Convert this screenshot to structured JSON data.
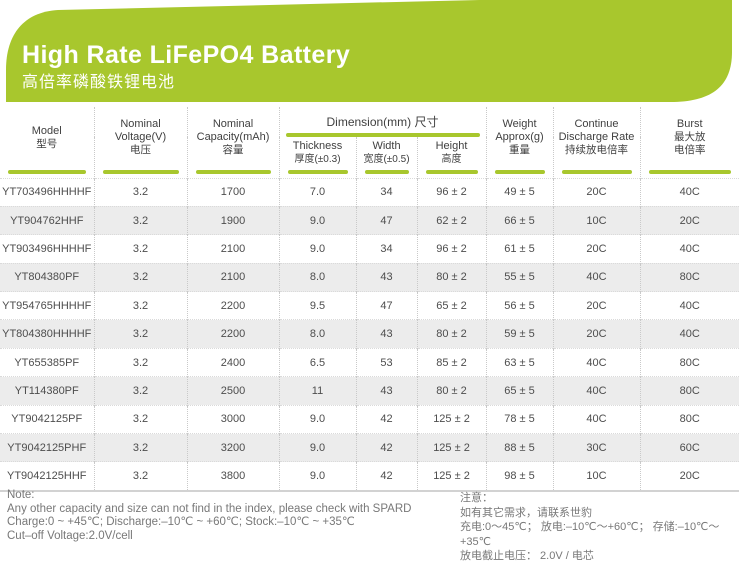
{
  "theme": {
    "accent_green": "#a8c72d",
    "stripe_gray": "#ececec",
    "header_text": "#3f3f3f",
    "body_text": "#4d4d4d",
    "note_text": "#787878"
  },
  "banner": {
    "title": "High Rate LiFePO4 Battery",
    "subtitle": "高倍率磷酸铁锂电池"
  },
  "table": {
    "dimension_group_label": "Dimension(mm) 尺寸",
    "headers": {
      "model": [
        "Model",
        "型号"
      ],
      "voltage": [
        "Nominal",
        "Voltage(V)",
        "电压"
      ],
      "capacity": [
        "Nominal",
        "Capacity(mAh)",
        "容量"
      ],
      "thickness": [
        "Thickness",
        "厚度(±0.3)"
      ],
      "width": [
        "Width",
        "宽度(±0.5)"
      ],
      "height": [
        "Height",
        "高度"
      ],
      "weight": [
        "Weight",
        "Approx(g)",
        "重量"
      ],
      "discharge_rate": [
        "Continue",
        "Discharge Rate",
        "持续放电倍率"
      ],
      "burst": [
        "Burst",
        "最大放",
        "电倍率"
      ]
    },
    "rows": [
      {
        "model": "YT703496HHHHF",
        "voltage": "3.2",
        "capacity": "1700",
        "thickness": "7.0",
        "width": "34",
        "height": "96 ± 2",
        "weight": "49 ± 5",
        "discharge_rate": "20C",
        "burst": "40C"
      },
      {
        "model": "YT904762HHF",
        "voltage": "3.2",
        "capacity": "1900",
        "thickness": "9.0",
        "width": "47",
        "height": "62 ± 2",
        "weight": "66 ± 5",
        "discharge_rate": "10C",
        "burst": "20C"
      },
      {
        "model": "YT903496HHHHF",
        "voltage": "3.2",
        "capacity": "2100",
        "thickness": "9.0",
        "width": "34",
        "height": "96 ± 2",
        "weight": "61 ± 5",
        "discharge_rate": "20C",
        "burst": "40C"
      },
      {
        "model": "YT804380PF",
        "voltage": "3.2",
        "capacity": "2100",
        "thickness": "8.0",
        "width": "43",
        "height": "80 ± 2",
        "weight": "55 ± 5",
        "discharge_rate": "40C",
        "burst": "80C"
      },
      {
        "model": "YT954765HHHHF",
        "voltage": "3.2",
        "capacity": "2200",
        "thickness": "9.5",
        "width": "47",
        "height": "65 ± 2",
        "weight": "56 ± 5",
        "discharge_rate": "20C",
        "burst": "40C"
      },
      {
        "model": "YT804380HHHHF",
        "voltage": "3.2",
        "capacity": "2200",
        "thickness": "8.0",
        "width": "43",
        "height": "80 ± 2",
        "weight": "59 ± 5",
        "discharge_rate": "20C",
        "burst": "40C"
      },
      {
        "model": "YT655385PF",
        "voltage": "3.2",
        "capacity": "2400",
        "thickness": "6.5",
        "width": "53",
        "height": "85 ± 2",
        "weight": "63 ± 5",
        "discharge_rate": "40C",
        "burst": "80C"
      },
      {
        "model": "YT114380PF",
        "voltage": "3.2",
        "capacity": "2500",
        "thickness": "11",
        "width": "43",
        "height": "80 ± 2",
        "weight": "65 ± 5",
        "discharge_rate": "40C",
        "burst": "80C"
      },
      {
        "model": "YT9042125PF",
        "voltage": "3.2",
        "capacity": "3000",
        "thickness": "9.0",
        "width": "42",
        "height": "125 ± 2",
        "weight": "78 ± 5",
        "discharge_rate": "40C",
        "burst": "80C"
      },
      {
        "model": "YT9042125PHF",
        "voltage": "3.2",
        "capacity": "3200",
        "thickness": "9.0",
        "width": "42",
        "height": "125 ± 2",
        "weight": "88 ± 5",
        "discharge_rate": "30C",
        "burst": "60C"
      },
      {
        "model": "YT9042125HHF",
        "voltage": "3.2",
        "capacity": "3800",
        "thickness": "9.0",
        "width": "42",
        "height": "125 ± 2",
        "weight": "98 ± 5",
        "discharge_rate": "10C",
        "burst": "20C"
      }
    ]
  },
  "notes": {
    "english": [
      "Note:",
      "Any other capacity and size can not find in the index, please check with SPARD",
      "Charge:0 ~ +45℃; Discharge:–10℃ ~ +60℃; Stock:–10℃ ~ +35℃",
      "Cut–off Voltage:2.0V/cell"
    ],
    "chinese": [
      "注意：",
      "如有其它需求，请联系世豹",
      "充电:0～45℃； 放电:–10℃～+60℃； 存储:–10℃～+35℃",
      "放电截止电压： 2.0V / 电芯"
    ]
  }
}
